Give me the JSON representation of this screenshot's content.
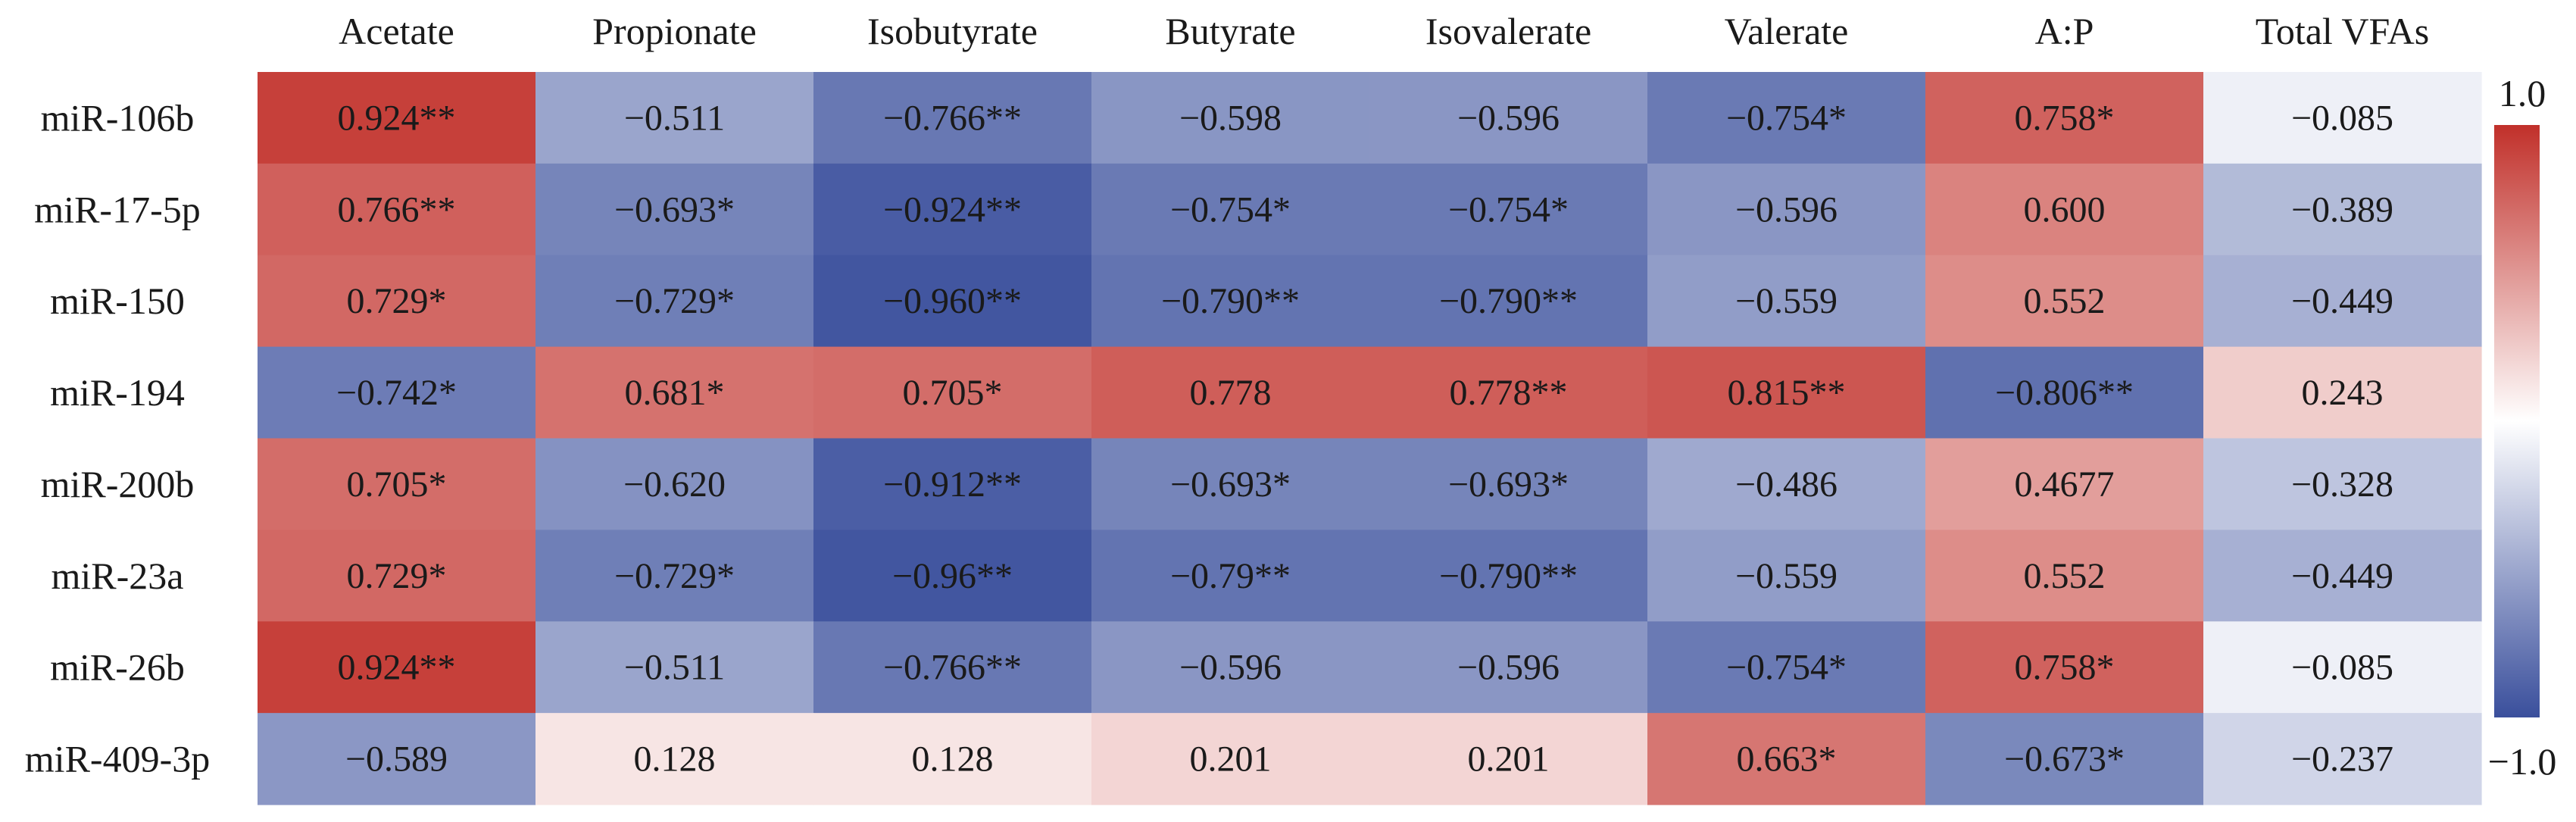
{
  "chart_data": {
    "type": "heatmap",
    "title": "",
    "columns": [
      "Acetate",
      "Propionate",
      "Isobutyrate",
      "Butyrate",
      "Isovalerate",
      "Valerate",
      "A:P",
      "Total VFAs"
    ],
    "rows": [
      "miR-106b",
      "miR-17-5p",
      "miR-150",
      "miR-194",
      "miR-200b",
      "miR-23a",
      "miR-26b",
      "miR-409-3p"
    ],
    "values": [
      [
        0.924,
        -0.511,
        -0.766,
        -0.598,
        -0.596,
        -0.754,
        0.758,
        -0.085
      ],
      [
        0.766,
        -0.693,
        -0.924,
        -0.754,
        -0.754,
        -0.596,
        0.6,
        -0.389
      ],
      [
        0.729,
        -0.729,
        -0.96,
        -0.79,
        -0.79,
        -0.559,
        0.552,
        -0.449
      ],
      [
        -0.742,
        0.681,
        0.705,
        0.778,
        0.778,
        0.815,
        -0.806,
        0.243
      ],
      [
        0.705,
        -0.62,
        -0.912,
        -0.693,
        -0.693,
        -0.486,
        0.4677,
        -0.328
      ],
      [
        0.729,
        -0.729,
        -0.96,
        -0.79,
        -0.79,
        -0.559,
        0.552,
        -0.449
      ],
      [
        0.924,
        -0.511,
        -0.766,
        -0.596,
        -0.596,
        -0.754,
        0.758,
        -0.085
      ],
      [
        -0.589,
        0.128,
        0.128,
        0.201,
        0.201,
        0.663,
        -0.673,
        -0.237
      ]
    ],
    "labels": [
      [
        "0.924**",
        "−0.511",
        "−0.766**",
        "−0.598",
        "−0.596",
        "−0.754*",
        "0.758*",
        "−0.085"
      ],
      [
        "0.766**",
        "−0.693*",
        "−0.924**",
        "−0.754*",
        "−0.754*",
        "−0.596",
        "0.600",
        "−0.389"
      ],
      [
        "0.729*",
        "−0.729*",
        "−0.960**",
        "−0.790**",
        "−0.790**",
        "−0.559",
        "0.552",
        "−0.449"
      ],
      [
        "−0.742*",
        "0.681*",
        "0.705*",
        "0.778",
        "0.778**",
        "0.815**",
        "−0.806**",
        "0.243"
      ],
      [
        "0.705*",
        "−0.620",
        "−0.912**",
        "−0.693*",
        "−0.693*",
        "−0.486",
        "0.4677",
        "−0.328"
      ],
      [
        "0.729*",
        "−0.729*",
        "−0.96**",
        "−0.79**",
        "−0.790**",
        "−0.559",
        "0.552",
        "−0.449"
      ],
      [
        "0.924**",
        "−0.511",
        "−0.766**",
        "−0.596",
        "−0.596",
        "−0.754*",
        "0.758*",
        "−0.085"
      ],
      [
        "−0.589",
        "0.128",
        "0.128",
        "0.201",
        "0.201",
        "0.663*",
        "−0.673*",
        "−0.237"
      ]
    ],
    "colorbar": {
      "min": -1.0,
      "max": 1.0,
      "min_label": "−1.0",
      "max_label": "1.0",
      "low_color": "#3a4f9c",
      "mid_color": "#ffffff",
      "high_color": "#c1302a"
    }
  }
}
